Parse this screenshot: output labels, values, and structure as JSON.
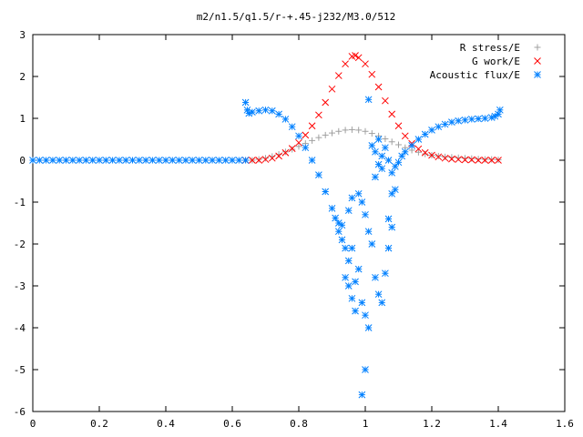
{
  "chart_data": {
    "type": "scatter",
    "title": "m2/n1.5/q1.5/r-+.45-j232/M3.0/512",
    "xlabel": "",
    "ylabel": "",
    "xlim": [
      0,
      1.6
    ],
    "ylim": [
      -6,
      3
    ],
    "xticks": [
      "0",
      "0.2",
      "0.4",
      "0.6",
      "0.8",
      "1",
      "1.2",
      "1.4",
      "1.6"
    ],
    "yticks": [
      "3",
      "2",
      "1",
      "0",
      "-1",
      "-2",
      "-3",
      "-4",
      "-5",
      "-6"
    ],
    "grid": false,
    "legend_position": "top-right",
    "series": [
      {
        "name": "R stress/E",
        "marker": "plus",
        "color": "#a0a0a0",
        "points": [
          [
            0.64,
            0.0
          ],
          [
            0.66,
            0.0
          ],
          [
            0.68,
            0.02
          ],
          [
            0.7,
            0.05
          ],
          [
            0.72,
            0.09
          ],
          [
            0.74,
            0.14
          ],
          [
            0.76,
            0.2
          ],
          [
            0.78,
            0.26
          ],
          [
            0.8,
            0.33
          ],
          [
            0.82,
            0.4
          ],
          [
            0.84,
            0.47
          ],
          [
            0.86,
            0.54
          ],
          [
            0.88,
            0.6
          ],
          [
            0.9,
            0.65
          ],
          [
            0.92,
            0.69
          ],
          [
            0.94,
            0.72
          ],
          [
            0.96,
            0.73
          ],
          [
            0.98,
            0.72
          ],
          [
            1.0,
            0.69
          ],
          [
            1.02,
            0.64
          ],
          [
            1.04,
            0.58
          ],
          [
            1.06,
            0.51
          ],
          [
            1.08,
            0.44
          ],
          [
            1.1,
            0.37
          ],
          [
            1.12,
            0.3
          ],
          [
            1.14,
            0.24
          ],
          [
            1.16,
            0.19
          ],
          [
            1.18,
            0.15
          ],
          [
            1.2,
            0.12
          ],
          [
            1.22,
            0.1
          ],
          [
            1.24,
            0.08
          ],
          [
            1.26,
            0.07
          ],
          [
            1.28,
            0.06
          ],
          [
            1.3,
            0.05
          ],
          [
            1.32,
            0.04
          ],
          [
            1.34,
            0.03
          ],
          [
            1.36,
            0.02
          ],
          [
            1.38,
            0.02
          ],
          [
            1.4,
            0.01
          ]
        ]
      },
      {
        "name": "G work/E",
        "marker": "cross",
        "color": "#ff0000",
        "points": [
          [
            0.64,
            0.0
          ],
          [
            0.66,
            0.0
          ],
          [
            0.68,
            0.0
          ],
          [
            0.7,
            0.02
          ],
          [
            0.72,
            0.05
          ],
          [
            0.74,
            0.1
          ],
          [
            0.76,
            0.18
          ],
          [
            0.78,
            0.28
          ],
          [
            0.8,
            0.42
          ],
          [
            0.82,
            0.6
          ],
          [
            0.84,
            0.82
          ],
          [
            0.86,
            1.08
          ],
          [
            0.88,
            1.38
          ],
          [
            0.9,
            1.7
          ],
          [
            0.92,
            2.02
          ],
          [
            0.94,
            2.3
          ],
          [
            0.96,
            2.48
          ],
          [
            0.97,
            2.5
          ],
          [
            0.98,
            2.45
          ],
          [
            1.0,
            2.3
          ],
          [
            1.02,
            2.05
          ],
          [
            1.04,
            1.75
          ],
          [
            1.06,
            1.42
          ],
          [
            1.08,
            1.1
          ],
          [
            1.1,
            0.82
          ],
          [
            1.12,
            0.58
          ],
          [
            1.14,
            0.4
          ],
          [
            1.16,
            0.27
          ],
          [
            1.18,
            0.18
          ],
          [
            1.2,
            0.12
          ],
          [
            1.22,
            0.08
          ],
          [
            1.24,
            0.05
          ],
          [
            1.26,
            0.03
          ],
          [
            1.28,
            0.02
          ],
          [
            1.3,
            0.01
          ],
          [
            1.32,
            0.01
          ],
          [
            1.34,
            0.0
          ],
          [
            1.36,
            0.0
          ],
          [
            1.38,
            0.0
          ],
          [
            1.4,
            0.0
          ]
        ]
      },
      {
        "name": "Acoustic flux/E",
        "marker": "star",
        "color": "#0080ff",
        "points": [
          [
            0.0,
            0.0
          ],
          [
            0.02,
            0.0
          ],
          [
            0.04,
            0.0
          ],
          [
            0.06,
            0.0
          ],
          [
            0.08,
            0.0
          ],
          [
            0.1,
            0.0
          ],
          [
            0.12,
            0.0
          ],
          [
            0.14,
            0.0
          ],
          [
            0.16,
            0.0
          ],
          [
            0.18,
            0.0
          ],
          [
            0.2,
            0.0
          ],
          [
            0.22,
            0.0
          ],
          [
            0.24,
            0.0
          ],
          [
            0.26,
            0.0
          ],
          [
            0.28,
            0.0
          ],
          [
            0.3,
            0.0
          ],
          [
            0.32,
            0.0
          ],
          [
            0.34,
            0.0
          ],
          [
            0.36,
            0.0
          ],
          [
            0.38,
            0.0
          ],
          [
            0.4,
            0.0
          ],
          [
            0.42,
            0.0
          ],
          [
            0.44,
            0.0
          ],
          [
            0.46,
            0.0
          ],
          [
            0.48,
            0.0
          ],
          [
            0.5,
            0.0
          ],
          [
            0.52,
            0.0
          ],
          [
            0.54,
            0.0
          ],
          [
            0.56,
            0.0
          ],
          [
            0.58,
            0.0
          ],
          [
            0.6,
            0.0
          ],
          [
            0.62,
            0.0
          ],
          [
            0.64,
            0.0
          ],
          [
            0.64,
            1.38
          ],
          [
            0.645,
            1.2
          ],
          [
            0.65,
            1.12
          ],
          [
            0.66,
            1.15
          ],
          [
            0.68,
            1.18
          ],
          [
            0.7,
            1.2
          ],
          [
            0.72,
            1.18
          ],
          [
            0.74,
            1.1
          ],
          [
            0.76,
            0.98
          ],
          [
            0.78,
            0.8
          ],
          [
            0.8,
            0.58
          ],
          [
            0.82,
            0.3
          ],
          [
            0.84,
            0.0
          ],
          [
            0.86,
            -0.35
          ],
          [
            0.88,
            -0.75
          ],
          [
            0.9,
            -1.15
          ],
          [
            0.91,
            -1.38
          ],
          [
            0.92,
            -1.5
          ],
          [
            0.93,
            -1.55
          ],
          [
            0.92,
            -1.7
          ],
          [
            0.93,
            -1.9
          ],
          [
            0.94,
            -2.1
          ],
          [
            0.95,
            -2.4
          ],
          [
            0.94,
            -2.8
          ],
          [
            0.95,
            -3.0
          ],
          [
            0.96,
            -3.3
          ],
          [
            0.97,
            -3.6
          ],
          [
            0.98,
            -2.6
          ],
          [
            0.99,
            -3.4
          ],
          [
            1.0,
            -3.7
          ],
          [
            1.01,
            -4.0
          ],
          [
            1.0,
            -5.0
          ],
          [
            0.99,
            -5.6
          ],
          [
            0.97,
            -2.9
          ],
          [
            0.96,
            -2.1
          ],
          [
            0.95,
            -1.2
          ],
          [
            0.96,
            -0.9
          ],
          [
            0.98,
            -0.8
          ],
          [
            0.99,
            -1.0
          ],
          [
            1.0,
            -1.3
          ],
          [
            1.01,
            -1.7
          ],
          [
            1.02,
            -2.0
          ],
          [
            1.03,
            -2.8
          ],
          [
            1.04,
            -3.2
          ],
          [
            1.05,
            -3.4
          ],
          [
            1.06,
            -2.7
          ],
          [
            1.07,
            -2.1
          ],
          [
            1.08,
            -1.6
          ],
          [
            1.07,
            -1.4
          ],
          [
            1.08,
            -0.8
          ],
          [
            1.09,
            -0.7
          ],
          [
            1.03,
            -0.4
          ],
          [
            1.04,
            -0.1
          ],
          [
            1.05,
            0.1
          ],
          [
            1.06,
            0.3
          ],
          [
            1.04,
            0.5
          ],
          [
            1.02,
            0.35
          ],
          [
            1.01,
            1.45
          ],
          [
            1.03,
            0.2
          ],
          [
            1.05,
            -0.2
          ],
          [
            1.07,
            0.0
          ],
          [
            1.08,
            -0.3
          ],
          [
            1.09,
            -0.15
          ],
          [
            1.1,
            -0.05
          ],
          [
            1.11,
            0.1
          ],
          [
            1.12,
            0.2
          ],
          [
            1.14,
            0.35
          ],
          [
            1.16,
            0.5
          ],
          [
            1.18,
            0.62
          ],
          [
            1.2,
            0.72
          ],
          [
            1.22,
            0.8
          ],
          [
            1.24,
            0.86
          ],
          [
            1.26,
            0.91
          ],
          [
            1.28,
            0.94
          ],
          [
            1.3,
            0.96
          ],
          [
            1.32,
            0.98
          ],
          [
            1.34,
            0.99
          ],
          [
            1.36,
            1.0
          ],
          [
            1.38,
            1.02
          ],
          [
            1.39,
            1.05
          ],
          [
            1.4,
            1.1
          ],
          [
            1.405,
            1.2
          ]
        ]
      }
    ]
  }
}
